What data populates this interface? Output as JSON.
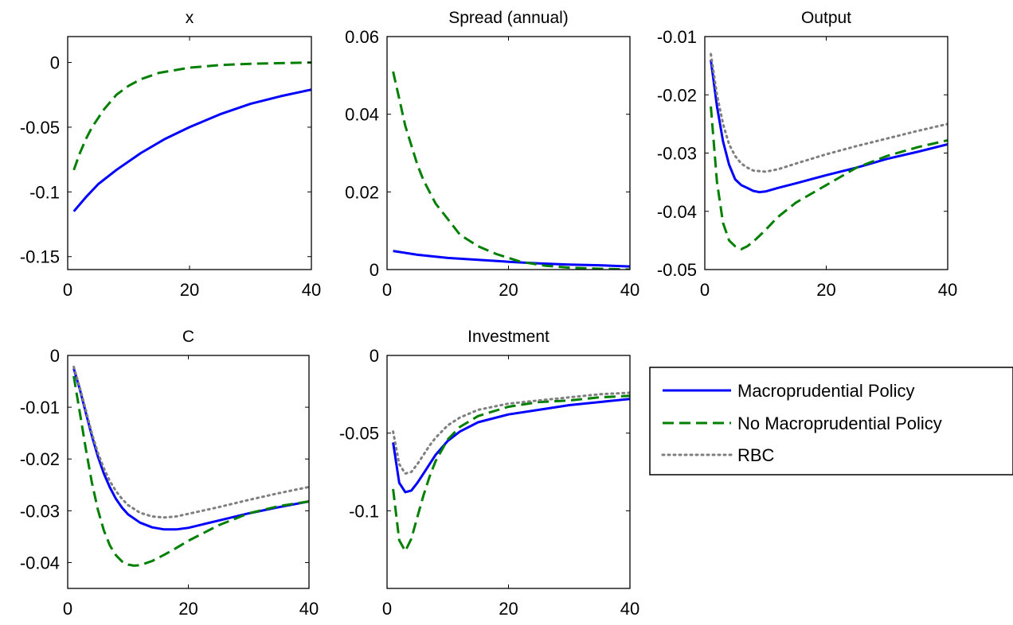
{
  "colors": {
    "macro": "#0000ff",
    "nomacro": "#007f00",
    "rbc": "#7f7f7f",
    "axis": "#000000",
    "background": "#ffffff"
  },
  "legend": {
    "placement": "right of bottom row",
    "entries": [
      "Macroprudential Policy",
      "No Macroprudential Policy",
      "RBC"
    ]
  },
  "chart_data": [
    {
      "type": "line",
      "title": "x",
      "xlim": [
        0,
        40
      ],
      "ylim": [
        -0.16,
        0.02
      ],
      "xticks": [
        0,
        20,
        40
      ],
      "yticks": [
        0,
        -0.05,
        -0.1,
        -0.15
      ],
      "xtick_labels": [
        "0",
        "20",
        "40"
      ],
      "ytick_labels": [
        "0",
        "-0.05",
        "-0.1",
        "-0.15"
      ],
      "series": [
        {
          "name": "Macroprudential Policy",
          "style": "solid",
          "color": "#0000ff",
          "x": [
            1,
            3,
            5,
            8,
            12,
            16,
            20,
            25,
            30,
            35,
            40
          ],
          "y": [
            -0.115,
            -0.104,
            -0.094,
            -0.083,
            -0.07,
            -0.059,
            -0.05,
            -0.04,
            -0.032,
            -0.026,
            -0.021
          ]
        },
        {
          "name": "No Macroprudential Policy",
          "style": "dashed",
          "color": "#007f00",
          "x": [
            1,
            2,
            3,
            4,
            6,
            8,
            10,
            12,
            15,
            20,
            25,
            30,
            35,
            40
          ],
          "y": [
            -0.083,
            -0.07,
            -0.059,
            -0.05,
            -0.036,
            -0.025,
            -0.018,
            -0.013,
            -0.008,
            -0.004,
            -0.002,
            -0.001,
            -0.0005,
            0
          ]
        }
      ]
    },
    {
      "type": "line",
      "title": "Spread (annual)",
      "xlim": [
        0,
        40
      ],
      "ylim": [
        0,
        0.06
      ],
      "xticks": [
        0,
        20,
        40
      ],
      "yticks": [
        0,
        0.02,
        0.04,
        0.06
      ],
      "xtick_labels": [
        "0",
        "20",
        "40"
      ],
      "ytick_labels": [
        "0",
        "0.02",
        "0.04",
        "0.06"
      ],
      "series": [
        {
          "name": "Macroprudential Policy",
          "style": "solid",
          "color": "#0000ff",
          "x": [
            1,
            5,
            10,
            15,
            20,
            25,
            30,
            35,
            40
          ],
          "y": [
            0.0048,
            0.0038,
            0.003,
            0.0025,
            0.002,
            0.0016,
            0.0013,
            0.0011,
            0.0008
          ]
        },
        {
          "name": "No Macroprudential Policy",
          "style": "dashed",
          "color": "#007f00",
          "x": [
            1,
            2,
            3,
            4,
            5,
            6,
            8,
            10,
            12,
            15,
            18,
            22,
            26,
            30,
            35,
            40
          ],
          "y": [
            0.051,
            0.044,
            0.037,
            0.032,
            0.027,
            0.023,
            0.017,
            0.013,
            0.009,
            0.006,
            0.004,
            0.002,
            0.001,
            0.0005,
            0.0002,
            0
          ]
        }
      ]
    },
    {
      "type": "line",
      "title": "Output",
      "xlim": [
        0,
        40
      ],
      "ylim": [
        -0.05,
        -0.01
      ],
      "xticks": [
        0,
        20,
        40
      ],
      "yticks": [
        -0.01,
        -0.02,
        -0.03,
        -0.04,
        -0.05
      ],
      "xtick_labels": [
        "0",
        "20",
        "40"
      ],
      "ytick_labels": [
        "-0.01",
        "-0.02",
        "-0.03",
        "-0.04",
        "-0.05"
      ],
      "series": [
        {
          "name": "Macroprudential Policy",
          "style": "solid",
          "color": "#0000ff",
          "x": [
            1,
            2,
            3,
            4,
            5,
            6,
            7,
            8,
            9,
            10,
            12,
            15,
            20,
            25,
            30,
            35,
            40
          ],
          "y": [
            -0.014,
            -0.022,
            -0.028,
            -0.032,
            -0.0345,
            -0.0355,
            -0.036,
            -0.0365,
            -0.0367,
            -0.0366,
            -0.036,
            -0.0352,
            -0.0338,
            -0.0325,
            -0.031,
            -0.0298,
            -0.0285
          ]
        },
        {
          "name": "No Macroprudential Policy",
          "style": "dashed",
          "color": "#007f00",
          "x": [
            1,
            2,
            3,
            4,
            5,
            6,
            7,
            8,
            10,
            12,
            15,
            20,
            25,
            30,
            35,
            40
          ],
          "y": [
            -0.022,
            -0.035,
            -0.042,
            -0.045,
            -0.046,
            -0.0465,
            -0.046,
            -0.0452,
            -0.0432,
            -0.041,
            -0.0385,
            -0.0355,
            -0.0325,
            -0.0305,
            -0.029,
            -0.0278
          ]
        },
        {
          "name": "RBC",
          "style": "dotted",
          "color": "#7f7f7f",
          "x": [
            1,
            2,
            3,
            4,
            5,
            6,
            7,
            8,
            10,
            12,
            15,
            20,
            25,
            30,
            35,
            40
          ],
          "y": [
            -0.013,
            -0.02,
            -0.025,
            -0.0285,
            -0.0305,
            -0.0318,
            -0.0325,
            -0.033,
            -0.0332,
            -0.0328,
            -0.0318,
            -0.0302,
            -0.0288,
            -0.0275,
            -0.0262,
            -0.025
          ]
        }
      ]
    },
    {
      "type": "line",
      "title": "C",
      "xlim": [
        0,
        40
      ],
      "ylim": [
        -0.045,
        0
      ],
      "xticks": [
        0,
        20,
        40
      ],
      "yticks": [
        0,
        -0.01,
        -0.02,
        -0.03,
        -0.04
      ],
      "xtick_labels": [
        "0",
        "20",
        "40"
      ],
      "ytick_labels": [
        "0",
        "-0.01",
        "-0.02",
        "-0.03",
        "-0.04"
      ],
      "series": [
        {
          "name": "Macroprudential Policy",
          "style": "solid",
          "color": "#0000ff",
          "x": [
            1,
            2,
            3,
            4,
            5,
            6,
            7,
            8,
            9,
            10,
            12,
            14,
            16,
            18,
            20,
            25,
            30,
            35,
            40
          ],
          "y": [
            -0.0025,
            -0.0065,
            -0.011,
            -0.0155,
            -0.0195,
            -0.0228,
            -0.0255,
            -0.0277,
            -0.0294,
            -0.0307,
            -0.0323,
            -0.0332,
            -0.0336,
            -0.0336,
            -0.0333,
            -0.0319,
            -0.0305,
            -0.0293,
            -0.0282
          ]
        },
        {
          "name": "No Macroprudential Policy",
          "style": "dashed",
          "color": "#007f00",
          "x": [
            1,
            2,
            3,
            4,
            5,
            6,
            7,
            8,
            9,
            10,
            11,
            12,
            14,
            16,
            18,
            20,
            25,
            30,
            35,
            40
          ],
          "y": [
            -0.004,
            -0.011,
            -0.018,
            -0.0245,
            -0.0298,
            -0.0338,
            -0.0367,
            -0.0386,
            -0.0398,
            -0.0404,
            -0.0406,
            -0.0405,
            -0.0397,
            -0.0385,
            -0.0372,
            -0.0358,
            -0.0328,
            -0.0305,
            -0.0291,
            -0.0282
          ]
        },
        {
          "name": "RBC",
          "style": "dotted",
          "color": "#7f7f7f",
          "x": [
            1,
            2,
            3,
            4,
            5,
            6,
            7,
            8,
            9,
            10,
            12,
            14,
            16,
            18,
            20,
            25,
            30,
            35,
            40
          ],
          "y": [
            -0.0022,
            -0.0062,
            -0.0105,
            -0.015,
            -0.0188,
            -0.0218,
            -0.0243,
            -0.0262,
            -0.0277,
            -0.0289,
            -0.0304,
            -0.0311,
            -0.0313,
            -0.0311,
            -0.0306,
            -0.0293,
            -0.0279,
            -0.0266,
            -0.0254
          ]
        }
      ]
    },
    {
      "type": "line",
      "title": "Investment",
      "xlim": [
        0,
        40
      ],
      "ylim": [
        -0.15,
        0
      ],
      "xticks": [
        0,
        20,
        40
      ],
      "yticks": [
        0,
        -0.05,
        -0.1
      ],
      "xtick_labels": [
        "0",
        "20",
        "40"
      ],
      "ytick_labels": [
        "0",
        "-0.05",
        "-0.1"
      ],
      "series": [
        {
          "name": "Macroprudential Policy",
          "style": "solid",
          "color": "#0000ff",
          "x": [
            1,
            2,
            3,
            4,
            5,
            6,
            7,
            8,
            10,
            12,
            15,
            20,
            25,
            30,
            35,
            40
          ],
          "y": [
            -0.056,
            -0.082,
            -0.088,
            -0.087,
            -0.082,
            -0.076,
            -0.07,
            -0.064,
            -0.055,
            -0.049,
            -0.043,
            -0.038,
            -0.035,
            -0.032,
            -0.03,
            -0.028
          ]
        },
        {
          "name": "No Macroprudential Policy",
          "style": "dashed",
          "color": "#007f00",
          "x": [
            1,
            2,
            3,
            4,
            5,
            6,
            7,
            8,
            10,
            12,
            15,
            20,
            25,
            30,
            35,
            40
          ],
          "y": [
            -0.086,
            -0.119,
            -0.126,
            -0.118,
            -0.104,
            -0.09,
            -0.078,
            -0.068,
            -0.054,
            -0.046,
            -0.039,
            -0.033,
            -0.03,
            -0.029,
            -0.027,
            -0.026
          ]
        },
        {
          "name": "RBC",
          "style": "dotted",
          "color": "#7f7f7f",
          "x": [
            1,
            2,
            3,
            4,
            5,
            6,
            7,
            8,
            10,
            12,
            15,
            20,
            25,
            30,
            35,
            40
          ],
          "y": [
            -0.049,
            -0.07,
            -0.076,
            -0.075,
            -0.07,
            -0.064,
            -0.058,
            -0.053,
            -0.045,
            -0.04,
            -0.035,
            -0.031,
            -0.029,
            -0.027,
            -0.025,
            -0.024
          ]
        }
      ]
    }
  ]
}
